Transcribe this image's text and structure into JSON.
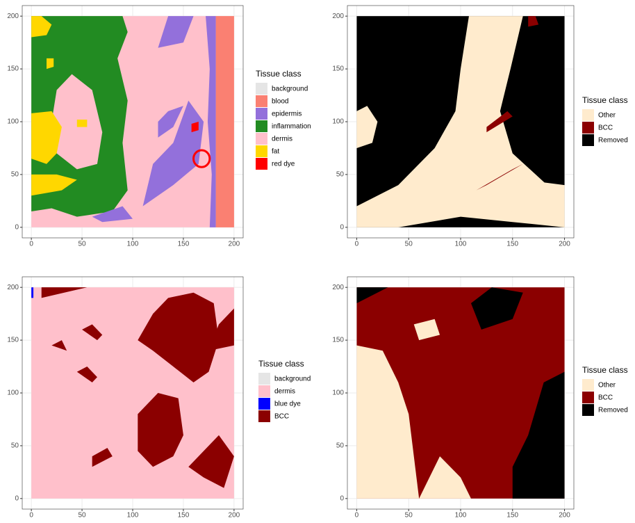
{
  "chart_data": [
    {
      "type": "raster",
      "xlim": [
        -9,
        209
      ],
      "ylim": [
        -10,
        210
      ],
      "xticks": [
        0,
        50,
        100,
        150,
        200
      ],
      "yticks": [
        0,
        50,
        100,
        150,
        200
      ],
      "grid": true,
      "legend_title": "Tissue class",
      "classes": [
        {
          "name": "background",
          "color": "#e5e5e5"
        },
        {
          "name": "blood",
          "color": "#fa8072"
        },
        {
          "name": "epidermis",
          "color": "#9370db"
        },
        {
          "name": "inflammation",
          "color": "#228b22"
        },
        {
          "name": "dermis",
          "color": "#ffc0cb"
        },
        {
          "name": "fat",
          "color": "#ffd700"
        },
        {
          "name": "red dye",
          "color": "#ff0000"
        }
      ]
    },
    {
      "type": "raster",
      "xlim": [
        -9,
        209
      ],
      "ylim": [
        -10,
        210
      ],
      "xticks": [
        0,
        50,
        100,
        150,
        200
      ],
      "yticks": [
        0,
        50,
        100,
        150,
        200
      ],
      "grid": true,
      "legend_title": "Tissue class",
      "classes": [
        {
          "name": "Other",
          "color": "#ffebcd"
        },
        {
          "name": "BCC",
          "color": "#8b0000"
        },
        {
          "name": "Removed",
          "color": "#000000"
        }
      ]
    },
    {
      "type": "raster",
      "xlim": [
        -9,
        209
      ],
      "ylim": [
        -10,
        210
      ],
      "xticks": [
        0,
        50,
        100,
        150,
        200
      ],
      "yticks": [
        0,
        50,
        100,
        150,
        200
      ],
      "grid": true,
      "legend_title": "Tissue class",
      "classes": [
        {
          "name": "background",
          "color": "#e5e5e5"
        },
        {
          "name": "dermis",
          "color": "#ffc0cb"
        },
        {
          "name": "blue dye",
          "color": "#0000ff"
        },
        {
          "name": "BCC",
          "color": "#8b0000"
        }
      ]
    },
    {
      "type": "raster",
      "xlim": [
        -9,
        209
      ],
      "ylim": [
        -10,
        210
      ],
      "xticks": [
        0,
        50,
        100,
        150,
        200
      ],
      "yticks": [
        0,
        50,
        100,
        150,
        200
      ],
      "grid": true,
      "legend_title": "Tissue class",
      "classes": [
        {
          "name": "Other",
          "color": "#ffebcd"
        },
        {
          "name": "BCC",
          "color": "#8b0000"
        },
        {
          "name": "Removed",
          "color": "#000000"
        }
      ]
    }
  ]
}
